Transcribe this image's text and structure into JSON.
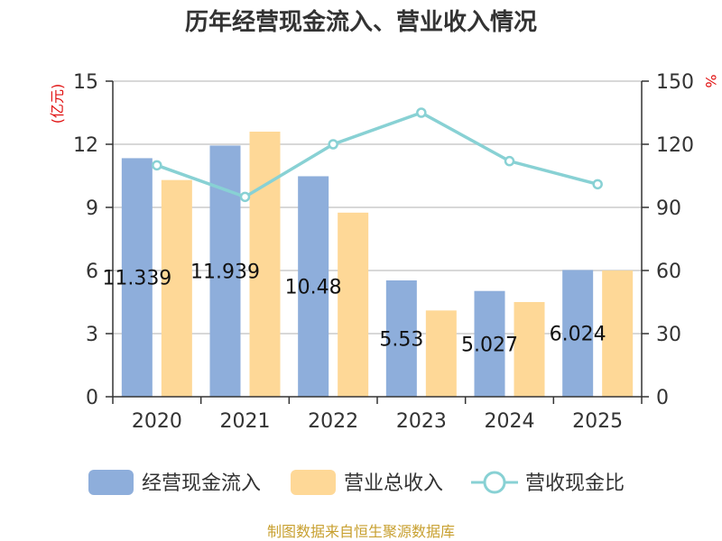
{
  "chart_data": {
    "title": "历年经营现金流入、营业收入情况",
    "type": "bar+line",
    "categories": [
      "2020",
      "2021",
      "2022",
      "2023",
      "2024",
      "2025"
    ],
    "left_axis": {
      "unit": "(亿元)",
      "ylim": [
        0,
        15
      ],
      "ticks": [
        "0",
        "3",
        "6",
        "9",
        "12",
        "15"
      ],
      "tick_values": [
        0,
        3,
        6,
        9,
        12,
        15
      ]
    },
    "right_axis": {
      "unit": "%",
      "ylim": [
        0,
        150
      ],
      "ticks": [
        "0",
        "30",
        "60",
        "90",
        "120",
        "150"
      ],
      "tick_values": [
        0,
        30,
        60,
        90,
        120,
        150
      ]
    },
    "series": [
      {
        "name": "经营现金流入",
        "type": "bar",
        "axis": "left",
        "color": "#8eaedb",
        "values": [
          11.339,
          11.939,
          10.48,
          5.53,
          5.027,
          6.024
        ],
        "labels": [
          "11.339",
          "11.939",
          "10.48",
          "5.53",
          "5.027",
          "6.024"
        ]
      },
      {
        "name": "营业总收入",
        "type": "bar",
        "axis": "left",
        "color": "#fed897",
        "values": [
          10.3,
          12.6,
          8.75,
          4.1,
          4.5,
          6.0
        ]
      },
      {
        "name": "营收现金比",
        "type": "line",
        "axis": "right",
        "color": "#88d1d4",
        "values": [
          110,
          95,
          120,
          135,
          112,
          101
        ]
      }
    ],
    "grid": true,
    "legend_position": "bottom"
  },
  "source": {
    "text": "制图数据来自恒生聚源数据库",
    "color": "#c8a030"
  },
  "colors": {
    "axis_unit": "#e01010",
    "axis": "#333333",
    "grid": "#cccccc"
  }
}
